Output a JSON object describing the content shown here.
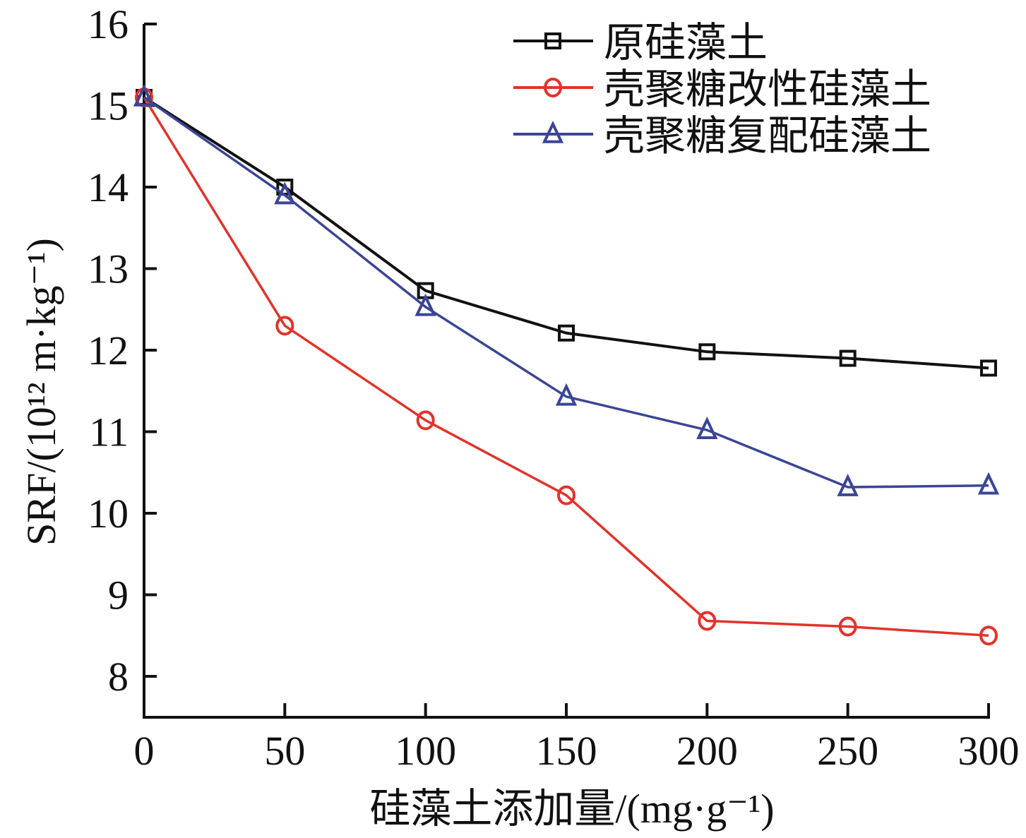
{
  "chart_data": {
    "type": "line",
    "title": "",
    "xlabel": "硅藻土添加量/(mg·g⁻¹)",
    "ylabel": "SRF/(10¹² m·kg⁻¹)",
    "x": [
      0,
      50,
      100,
      150,
      200,
      250,
      300
    ],
    "xlim": [
      0,
      300
    ],
    "ylim": [
      7.5,
      16
    ],
    "xticks": [
      "0",
      "50",
      "100",
      "150",
      "200",
      "250",
      "300"
    ],
    "yticks": [
      "8",
      "9",
      "10",
      "11",
      "12",
      "13",
      "14",
      "15",
      "16"
    ],
    "grid": false,
    "legend_position": "top-right",
    "series": [
      {
        "name": "原硅藻土",
        "marker": "square",
        "color": "#111111",
        "values": [
          15.1,
          14.0,
          12.73,
          12.21,
          11.98,
          11.9,
          11.78
        ]
      },
      {
        "name": "壳聚糖改性硅藻土",
        "marker": "circle",
        "color": "#e2332a",
        "values": [
          15.1,
          12.3,
          11.14,
          10.22,
          8.68,
          8.61,
          8.5
        ]
      },
      {
        "name": "壳聚糖复配硅藻土",
        "marker": "triangle",
        "color": "#3a4596",
        "values": [
          15.1,
          13.9,
          12.53,
          11.43,
          11.02,
          10.32,
          10.34
        ]
      }
    ]
  }
}
